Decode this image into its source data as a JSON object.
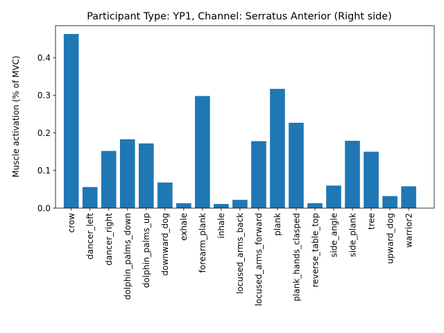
{
  "chart_data": {
    "type": "bar",
    "title": "Participant Type: YP1, Channel: Serratus Anterior (Right side)",
    "xlabel": "",
    "ylabel": "Muscle activation (% of MVC)",
    "ylim": [
      0,
      0.485
    ],
    "yticks": [
      0.0,
      0.1,
      0.2,
      0.3,
      0.4
    ],
    "ytick_labels": [
      "0.0",
      "0.1",
      "0.2",
      "0.3",
      "0.4"
    ],
    "grid": false,
    "bar_color": "#1f77b4",
    "categories": [
      "crow",
      "dancer_left",
      "dancer_right",
      "dolphin_palms_down",
      "dolphin_palms_up",
      "downward_dog",
      "exhale",
      "forearm_plank",
      "inhale",
      "locused_arms_back",
      "locused_arms_forward",
      "plank",
      "plank_hands_clasped",
      "reverse_table_top",
      "side_angle",
      "side_plank",
      "tree",
      "upward_dog",
      "warrior2"
    ],
    "values": [
      0.463,
      0.056,
      0.152,
      0.183,
      0.172,
      0.068,
      0.013,
      0.298,
      0.011,
      0.022,
      0.178,
      0.317,
      0.227,
      0.013,
      0.06,
      0.179,
      0.15,
      0.032,
      0.058
    ]
  }
}
